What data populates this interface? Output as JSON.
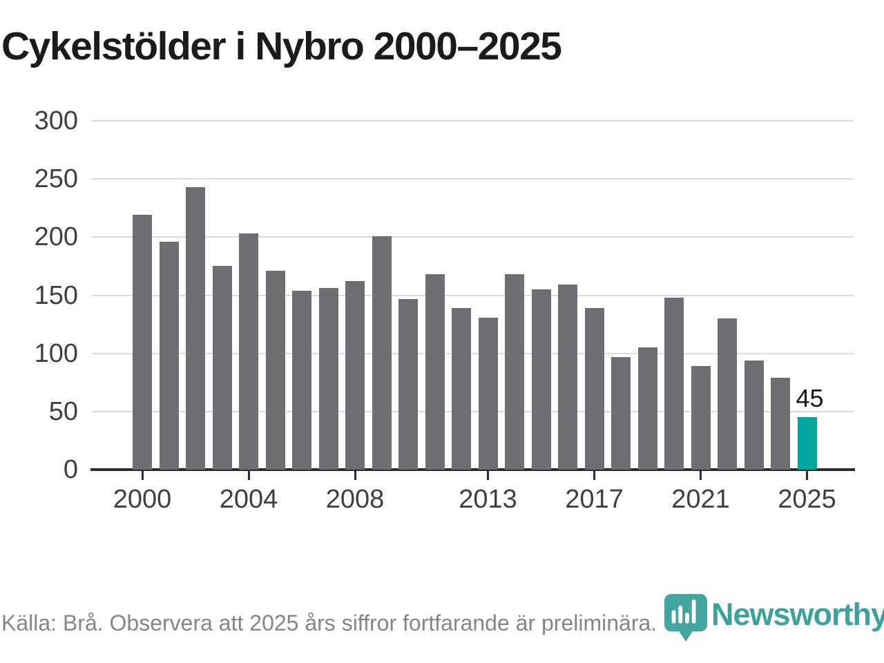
{
  "title": "Cykelstölder i Nybro 2000–2025",
  "chart_data": {
    "type": "bar",
    "title": "Cykelstölder i Nybro 2000–2025",
    "categories": [
      2000,
      2001,
      2002,
      2003,
      2004,
      2005,
      2006,
      2007,
      2008,
      2009,
      2010,
      2011,
      2012,
      2013,
      2014,
      2015,
      2016,
      2017,
      2018,
      2019,
      2020,
      2021,
      2022,
      2023,
      2024,
      2025
    ],
    "values": [
      219,
      196,
      243,
      175,
      203,
      171,
      154,
      156,
      162,
      201,
      147,
      168,
      139,
      131,
      168,
      155,
      159,
      139,
      97,
      105,
      148,
      89,
      130,
      94,
      79,
      45
    ],
    "xlabel": "",
    "ylabel": "",
    "ylim": [
      0,
      300
    ],
    "yticks": [
      0,
      50,
      100,
      150,
      200,
      250,
      300
    ],
    "xticks": [
      2000,
      2004,
      2008,
      2013,
      2017,
      2021,
      2025
    ],
    "grid": true,
    "legend": "none",
    "bar_color": "#6e6e73",
    "highlight_year": 2025,
    "highlight_color": "#00a69c",
    "highlight_value_label": "45"
  },
  "footer": {
    "source_note": "Källa: Brå. Observera att 2025 års siffror fortfarande är preliminära."
  },
  "branding": {
    "logo_text": "Newsworthy",
    "logo_color": "#3da19c",
    "logo_icon": "newsworthy-pin-barchart-icon"
  }
}
